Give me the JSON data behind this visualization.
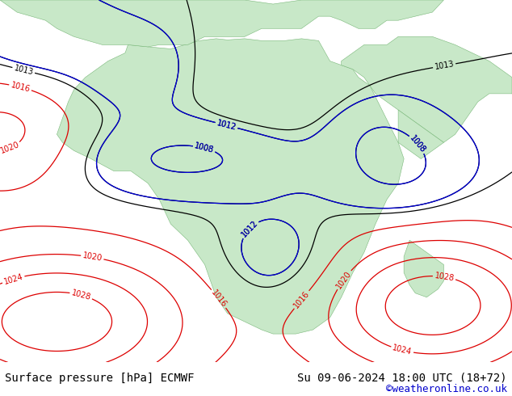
{
  "title_left": "Surface pressure [hPa] ECMWF",
  "title_right": "Su 09-06-2024 18:00 UTC (18+72)",
  "credit": "©weatheronline.co.uk",
  "background_color": "#ffffff",
  "ocean_color": "#ffffff",
  "land_color": "#c8e8c8",
  "land_edge_color": "#7ab87a",
  "isobar_black": "#000000",
  "isobar_blue": "#0000dd",
  "isobar_red": "#dd0000",
  "label_fontsize": 7,
  "bottom_fontsize": 10,
  "credit_color": "#0000cc",
  "figsize": [
    6.34,
    4.9
  ],
  "dpi": 100,
  "xlim": [
    -28,
    62
  ],
  "ylim": [
    -42,
    47
  ]
}
